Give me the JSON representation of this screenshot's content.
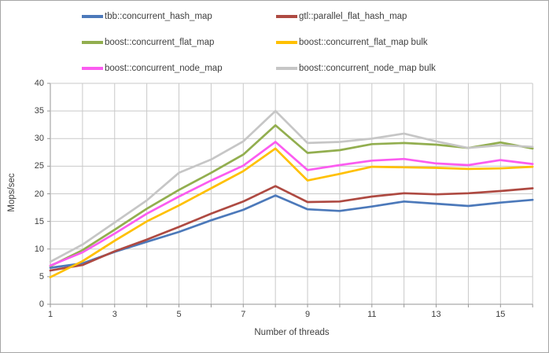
{
  "chart_data": {
    "type": "line",
    "title": "",
    "xlabel": "Number of threads",
    "ylabel": "Mops/sec",
    "xlim": [
      1,
      16
    ],
    "ylim": [
      0,
      40
    ],
    "grid": true,
    "legend_position": "top",
    "x": [
      1,
      2,
      3,
      4,
      5,
      6,
      7,
      8,
      9,
      10,
      11,
      12,
      13,
      14,
      15,
      16
    ],
    "x_tick_positions": [
      1,
      3,
      5,
      7,
      9,
      11,
      13,
      15
    ],
    "x_tick_labels": [
      "1",
      "3",
      "5",
      "7",
      "9",
      "11",
      "13",
      "15"
    ],
    "y_tick_values": [
      0,
      5,
      10,
      15,
      20,
      25,
      30,
      35,
      40
    ],
    "y_tick_labels": [
      "0",
      "5",
      "10",
      "15",
      "20",
      "25",
      "30",
      "35",
      "40"
    ],
    "series": [
      {
        "name": "tbb::concurrent_hash_map",
        "color": "#4C79BA",
        "values": [
          6.6,
          7.4,
          9.5,
          11.3,
          13.1,
          15.2,
          17.1,
          19.7,
          17.2,
          16.9,
          17.7,
          18.6,
          18.2,
          17.8,
          18.4,
          18.9
        ]
      },
      {
        "name": "gtl::parallel_flat_hash_map",
        "color": "#AE4A42",
        "values": [
          6.1,
          7.1,
          9.6,
          11.7,
          14.0,
          16.4,
          18.6,
          21.4,
          18.5,
          18.6,
          19.5,
          20.1,
          19.9,
          20.1,
          20.5,
          21.0
        ]
      },
      {
        "name": "boost::concurrent_flat_map",
        "color": "#92AE4F",
        "values": [
          6.9,
          9.8,
          13.5,
          17.3,
          20.7,
          23.8,
          27.1,
          32.4,
          27.4,
          27.9,
          29.0,
          29.2,
          28.9,
          28.3,
          29.3,
          28.2
        ]
      },
      {
        "name": "boost::concurrent_flat_map bulk",
        "color": "#FFC000",
        "values": [
          4.9,
          7.8,
          11.5,
          15.0,
          17.9,
          21.0,
          24.1,
          28.2,
          22.4,
          23.6,
          24.9,
          24.8,
          24.7,
          24.5,
          24.6,
          24.9
        ]
      },
      {
        "name": "boost::concurrent_node_map",
        "color": "#FB5CF0",
        "values": [
          7.0,
          9.4,
          12.8,
          16.4,
          19.5,
          22.4,
          25.1,
          29.4,
          24.3,
          25.2,
          26.0,
          26.3,
          25.5,
          25.2,
          26.1,
          25.4
        ]
      },
      {
        "name": "boost::concurrent_node_map bulk",
        "color": "#C6C6C6",
        "values": [
          7.7,
          10.8,
          14.8,
          18.8,
          23.8,
          26.2,
          29.5,
          35.0,
          29.2,
          29.4,
          30.0,
          30.9,
          29.5,
          28.3,
          28.8,
          28.5
        ]
      }
    ]
  },
  "colors": {
    "background": "#FFFFFF",
    "frame_border": "#A6A6A6",
    "gridline": "#C9C9C9",
    "axis_line": "#969696",
    "text": "#3F3F3F"
  }
}
